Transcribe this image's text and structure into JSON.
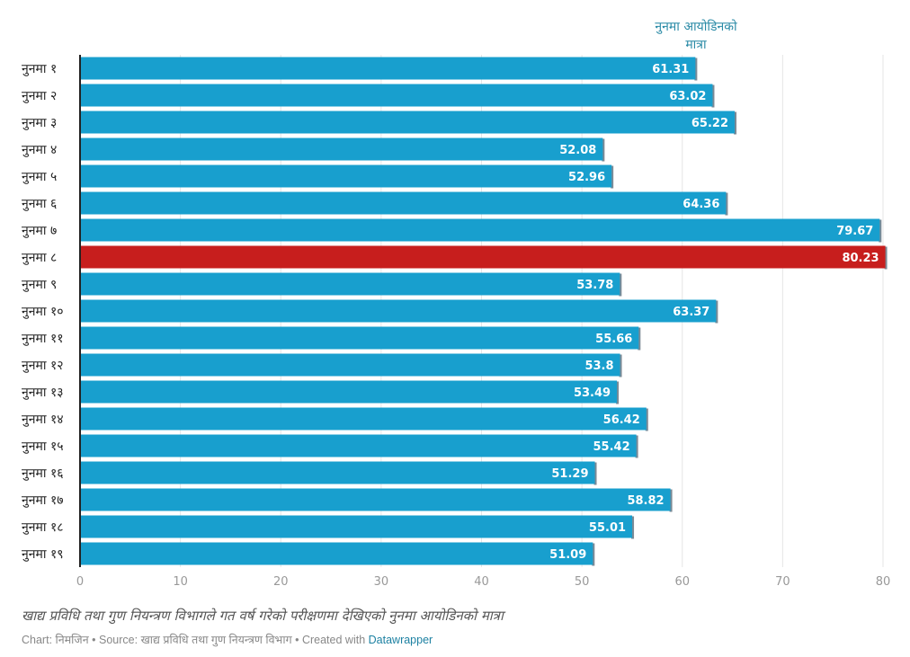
{
  "chart_data": {
    "type": "bar",
    "orientation": "horizontal",
    "column_header": [
      "नुनमा आयोडिनको",
      "मात्रा"
    ],
    "categories": [
      "नुनमा १",
      "नुनमा २",
      "नुनमा ३",
      "नुनमा ४",
      "नुनमा ५",
      "नुनमा ६",
      "नुनमा ७",
      "नुनमा ८",
      "नुनमा ९",
      "नुनमा १०",
      "नुनमा ११",
      "नुनमा १२",
      "नुनमा १३",
      "नुनमा १४",
      "नुनमा १५",
      "नुनमा १६",
      "नुनमा १७",
      "नुनमा १८",
      "नुनमा १९"
    ],
    "values": [
      61.31,
      63.02,
      65.22,
      52.08,
      52.96,
      64.36,
      79.67,
      80.23,
      53.78,
      63.37,
      55.66,
      53.8,
      53.49,
      56.42,
      55.42,
      51.29,
      58.82,
      55.01,
      51.09
    ],
    "value_labels": [
      "61.31",
      "63.02",
      "65.22",
      "52.08",
      "52.96",
      "64.36",
      "79.67",
      "80.23",
      "53.78",
      "63.37",
      "55.66",
      "53.8",
      "53.49",
      "56.42",
      "55.42",
      "51.29",
      "58.82",
      "55.01",
      "51.09"
    ],
    "highlight_index": 7,
    "xlim": [
      0,
      80
    ],
    "xticks": [
      0,
      10,
      20,
      30,
      40,
      50,
      60,
      70,
      80
    ],
    "grid": true,
    "colors": {
      "bar": "#189fce",
      "highlight": "#c71e1d",
      "bar_shadow": "#7b8a96"
    }
  },
  "notes": "खाद्य प्रविधि तथा गुण नियन्त्रण विभागले गत वर्ष गरेको परीक्षणमा देखिएको नुनमा आयोडिनको मात्रा",
  "byline": {
    "chart_label": "Chart:",
    "author": "निमजिन",
    "source_label": "Source:",
    "source": "खाद्य प्रविधि तथा गुण नियन्त्रण विभाग",
    "created_label": "Created with",
    "tool": "Datawrapper",
    "separator": "•"
  }
}
